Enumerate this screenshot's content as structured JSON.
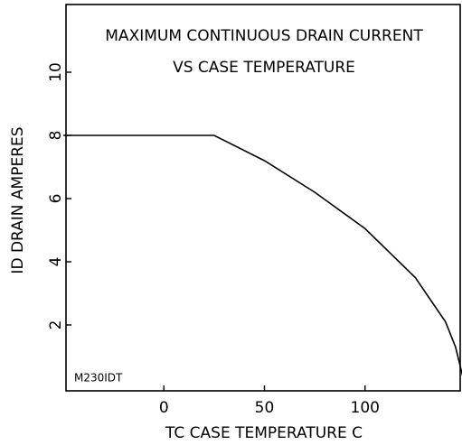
{
  "chart_data": {
    "type": "line",
    "title": [
      "MAXIMUM CONTINUOUS DRAIN CURRENT",
      "VS CASE TEMPERATURE"
    ],
    "x_label": "TC   CASE TEMPERATURE   C",
    "y_label": "ID   DRAIN AMPERES",
    "annotation": "M230IDT",
    "x": [
      -50,
      25,
      50,
      75,
      100,
      125,
      140,
      145,
      150
    ],
    "series": [
      {
        "name": "ID",
        "color": "#000000",
        "values": [
          8,
          8,
          7.2,
          6.2,
          5.05,
          3.5,
          2.1,
          1.3,
          0
        ]
      }
    ],
    "xlim": [
      -50,
      150
    ],
    "xticks": [
      0,
      50,
      100
    ],
    "ylim": [
      0,
      12
    ],
    "yticks": [
      2,
      4,
      6,
      8,
      10
    ],
    "grid": false
  }
}
